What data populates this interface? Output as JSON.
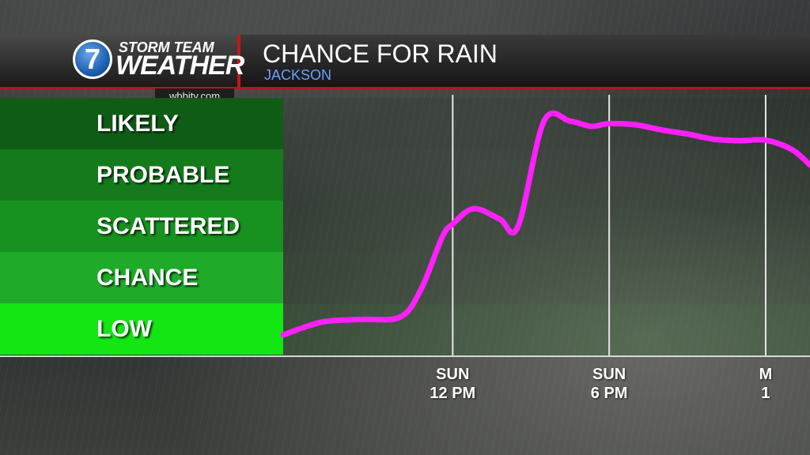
{
  "header": {
    "logo_number": "7",
    "logo_line1": "STORM TEAM",
    "logo_line2": "WEATHER",
    "url": "wbbjtv.com"
  },
  "chart_data": {
    "type": "line",
    "title": "CHANCE FOR RAIN",
    "subtitle": "JACKSON",
    "categories": [
      "LOW",
      "CHANCE",
      "SCATTERED",
      "PROBABLE",
      "LIKELY"
    ],
    "category_colors": [
      "#14e614",
      "#1faa2a",
      "#17911f",
      "#157a1c",
      "#0f5c16"
    ],
    "x_ticks": [
      {
        "line1": "SUN",
        "line2": "12 PM",
        "hour": 12
      },
      {
        "line1": "SUN",
        "line2": "6 PM",
        "hour": 18
      },
      {
        "line1": "M",
        "line2": "1",
        "hour": 24
      }
    ],
    "xlim": [
      5.5,
      25.7
    ],
    "ylim": [
      0,
      5
    ],
    "line_color": "#ff1fff",
    "series": [
      {
        "x": [
          5.5,
          7.0,
          8.5,
          10.0,
          10.8,
          11.6,
          12.0,
          12.8,
          13.8,
          14.5,
          15.5,
          16.5,
          17.3,
          18.0,
          19.0,
          20.0,
          21.0,
          22.0,
          23.0,
          24.0,
          25.0,
          25.7
        ],
        "y": [
          0.4,
          0.65,
          0.7,
          0.75,
          1.3,
          2.3,
          2.55,
          2.85,
          2.65,
          2.5,
          4.55,
          4.55,
          4.45,
          4.5,
          4.48,
          4.38,
          4.3,
          4.2,
          4.17,
          4.18,
          4.0,
          3.7
        ]
      }
    ]
  }
}
